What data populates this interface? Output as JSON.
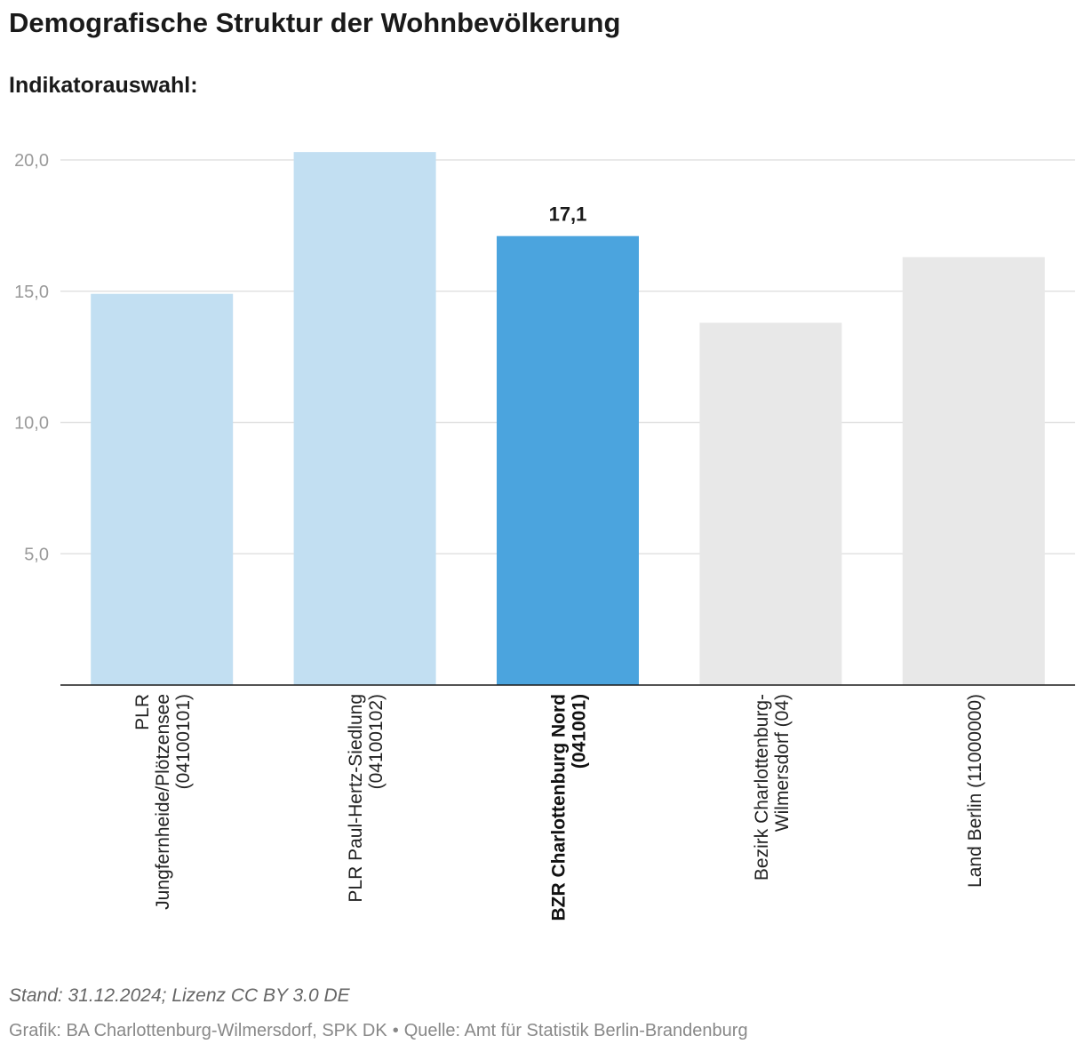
{
  "header": {
    "title": "Demografische Struktur der Wohnbevölkerung",
    "subtitle": "Indikatorauswahl:"
  },
  "footer": {
    "stand": "Stand: 31.12.2024; Lizenz CC BY 3.0 DE",
    "grafik": "Grafik: BA Charlottenburg-Wilmersdorf, SPK DK",
    "separator": "•",
    "quelle": "Quelle: Amt für Statistik Berlin-Brandenburg"
  },
  "chart_data": {
    "type": "bar",
    "title": "Demografische Struktur der Wohnbevölkerung",
    "xlabel": "",
    "ylabel": "",
    "ylim": [
      0,
      20.5
    ],
    "yticks": [
      {
        "value": 5,
        "label": "5,0"
      },
      {
        "value": 10,
        "label": "10,0"
      },
      {
        "value": 15,
        "label": "15,0"
      },
      {
        "value": 20,
        "label": "20,0"
      }
    ],
    "grid": true,
    "categories": [
      "PLR Jungfernheide/Plötzensee (04100101)",
      "PLR Paul-Hertz-Siedlung (04100102)",
      "BZR Charlottenburg Nord (041001)",
      "Bezirk Charlottenburg-Wilmersdorf (04)",
      "Land Berlin (11000000)"
    ],
    "category_label_lines": [
      [
        "PLR",
        "Jungfernheide/Plötzensee",
        "(04100101)"
      ],
      [
        "PLR Paul-Hertz-Siedlung",
        "(04100102)"
      ],
      [
        "BZR Charlottenburg Nord",
        "(041001)"
      ],
      [
        "Bezirk Charlottenburg-",
        "Wilmersdorf (04)"
      ],
      [
        "Land Berlin (11000000)"
      ]
    ],
    "values": [
      14.9,
      20.3,
      17.1,
      13.8,
      16.3
    ],
    "colors": [
      "#c2dff2",
      "#c2dff2",
      "#4ba4de",
      "#e8e8e8",
      "#e8e8e8"
    ],
    "highlight_index": 2,
    "data_labels": [
      {
        "index": 2,
        "text": "17,1"
      }
    ]
  }
}
